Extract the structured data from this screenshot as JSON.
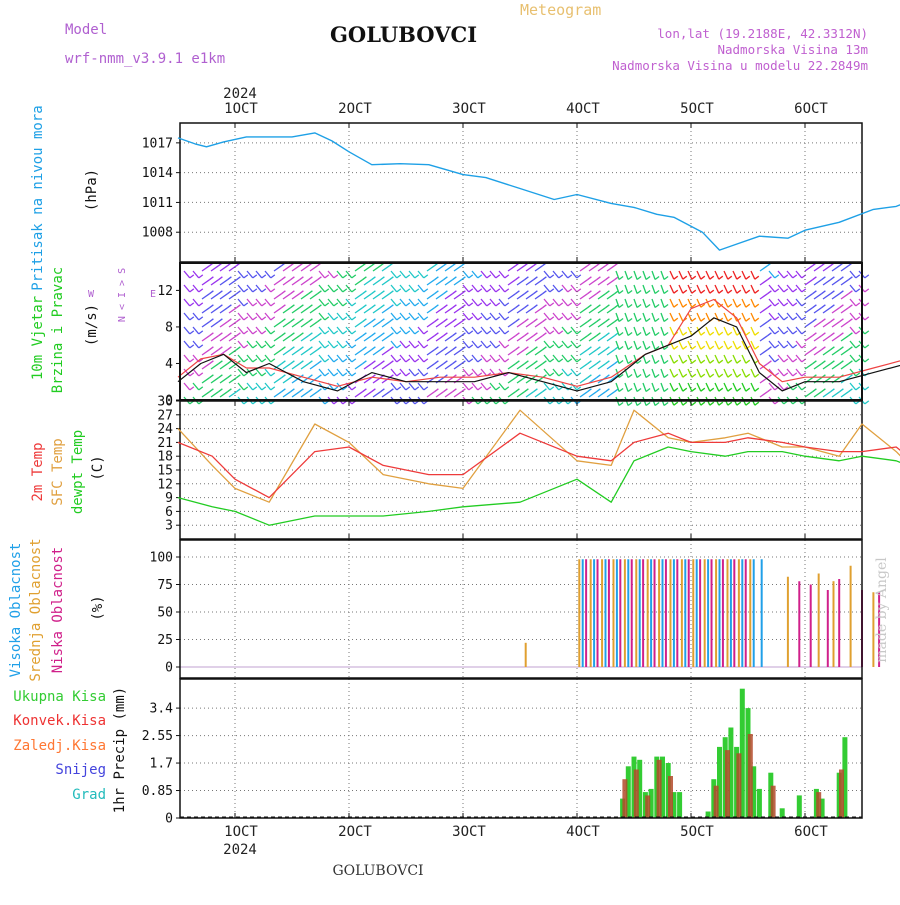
{
  "header": {
    "model_label": "Model",
    "model_name": "wrf-nmm_v3.9.1 e1km",
    "station": "GOLUBOVCI",
    "meteogram_label": "Meteogram",
    "lonlat": "lon,lat (19.2188E, 42.3312N)",
    "elevation": "Nadmorska Visina 13m",
    "model_elevation": "Nadmorska Visina u modelu 22.2849m",
    "footer_station": "GOLUBOVCI",
    "watermark": "made by Angel"
  },
  "time_axis": {
    "year": "2024",
    "ticks": [
      "1OCT",
      "2OCT",
      "3OCT",
      "4OCT",
      "5OCT",
      "6OCT"
    ]
  },
  "panels": {
    "pressure": {
      "title": "Pritisak na nivou mora",
      "unit": "(hPa)",
      "ticks": [
        "1017",
        "1014",
        "1011",
        "1008"
      ]
    },
    "wind": {
      "title_1": "10m Vjetar",
      "title_2": "Brzina i Pravac",
      "unit": "(m/s)",
      "ticks": [
        "0",
        "4",
        "8",
        "12"
      ],
      "compass": [
        "N",
        "<",
        "I",
        ">",
        "S"
      ],
      "compass_w": "W",
      "compass_e": "E"
    },
    "temperature": {
      "label_2m": "2m Temp",
      "label_sfc": "SFC Temp",
      "label_dewpt": "dewpt Temp",
      "unit": "(C)",
      "ticks": [
        "3",
        "6",
        "9",
        "12",
        "15",
        "18",
        "21",
        "24",
        "27",
        "30"
      ]
    },
    "cloud": {
      "label_high": "Visoka Oblacnost",
      "label_mid": "Srednja Oblacnost",
      "label_low": "Niska Oblacnost",
      "unit": "(%)",
      "ticks": [
        "0",
        "25",
        "50",
        "75",
        "100"
      ]
    },
    "precip": {
      "legend": [
        "Ukupna Kisa",
        "Konvek.Kisa",
        "Zaledj.Kisa",
        "Snijeg",
        "Grad"
      ],
      "axis_label": "1hr Precip (mm)",
      "ticks": [
        "0",
        "0.85",
        "1.7",
        "2.55",
        "3.4"
      ]
    }
  },
  "colors": {
    "pressure": "#1ea0e6",
    "t2m": "#ee3a3a",
    "tsfc": "#e0a040",
    "dewpt": "#22cc22",
    "high_cloud": "#20a0e8",
    "mid_cloud": "#e0a030",
    "low_cloud": "#d0208a",
    "rain_total": "#33cc33",
    "rain_conv": "#ee3333",
    "freezing": "#ff7733",
    "snow": "#4444dd",
    "hail": "#22bbbb",
    "model": "#b060d0",
    "lonlat": "#c060d0",
    "meteogram": "#e8c070"
  },
  "chart_data": [
    {
      "type": "line",
      "title": "Pritisak na nivou mora",
      "x_unit": "days since 1 OCT 2024",
      "ylim": [
        1005,
        1019
      ],
      "grid": true,
      "series": [
        {
          "name": "Pritisak na nivou mora",
          "x": [
            -0.5,
            -0.35,
            -0.25,
            -0.1,
            0.1,
            0.3,
            0.5,
            0.7,
            0.85,
            1.0,
            1.2,
            1.45,
            1.7,
            2.0,
            2.2,
            2.5,
            2.8,
            3.0,
            3.3,
            3.5,
            3.7,
            3.85,
            4.1,
            4.25,
            4.4,
            4.6,
            4.85,
            5.0,
            5.3,
            5.6,
            5.8,
            6.0,
            6.3,
            6.5
          ],
          "values": [
            1017.5,
            1016.9,
            1016.6,
            1017.1,
            1017.6,
            1017.6,
            1017.6,
            1018.0,
            1017.2,
            1016.1,
            1014.8,
            1014.9,
            1014.8,
            1013.8,
            1013.5,
            1012.4,
            1011.3,
            1011.8,
            1010.9,
            1010.5,
            1009.8,
            1009.5,
            1008.0,
            1006.2,
            1006.8,
            1007.6,
            1007.4,
            1008.2,
            1009.0,
            1010.3,
            1010.6,
            1011.5,
            1011.2,
            1010.0
          ]
        }
      ]
    },
    {
      "type": "line",
      "title": "10m Vjetar Brzina i Pravac",
      "x_unit": "days since 1 OCT 2024",
      "ylim": [
        0,
        15
      ],
      "grid": true,
      "series": [
        {
          "name": "10m Vjetar",
          "x": [
            -0.5,
            -0.3,
            -0.1,
            0.1,
            0.3,
            0.6,
            0.9,
            1.2,
            1.5,
            1.8,
            2.1,
            2.4,
            2.7,
            3.0,
            3.3,
            3.6,
            3.8,
            4.0,
            4.2,
            4.4,
            4.6,
            4.8,
            5.0,
            5.3,
            5.6,
            5.9,
            6.2,
            6.5
          ],
          "values": [
            2,
            4,
            5,
            3,
            4,
            2,
            1,
            3,
            2,
            2,
            2,
            3,
            2,
            1,
            2,
            5,
            6,
            7,
            9,
            8,
            3,
            1,
            2,
            2,
            3,
            4,
            3,
            1
          ]
        },
        {
          "name": "10m Vjetar",
          "x": [
            -0.5,
            -0.3,
            -0.1,
            0.1,
            0.3,
            0.6,
            0.9,
            1.2,
            1.5,
            1.8,
            2.1,
            2.4,
            2.7,
            3.0,
            3.3,
            3.6,
            3.8,
            4.0,
            4.2,
            4.4,
            4.6,
            4.8,
            5.0,
            5.3,
            5.6,
            5.9,
            6.2,
            6.5
          ],
          "values": [
            2.5,
            4.5,
            5,
            3.5,
            3.5,
            2.5,
            1.5,
            2.5,
            2,
            2.5,
            2.5,
            3,
            2.5,
            1.5,
            2.5,
            5,
            6,
            10,
            11,
            9,
            4,
            2,
            2.5,
            2.5,
            3.5,
            4.5,
            3.5,
            1.5
          ]
        }
      ]
    },
    {
      "type": "line",
      "title": "Temp",
      "x_unit": "days since 1 OCT 2024",
      "ylim": [
        0,
        30
      ],
      "grid": true,
      "series": [
        {
          "name": "2m Temp",
          "x": [
            -0.5,
            -0.2,
            0.0,
            0.3,
            0.7,
            1.0,
            1.3,
            1.7,
            2.0,
            2.5,
            3.0,
            3.3,
            3.5,
            3.8,
            4.0,
            4.3,
            4.5,
            4.8,
            5.0,
            5.3,
            5.5,
            5.8,
            6.0,
            6.2,
            6.5
          ],
          "values": [
            21,
            18,
            13,
            9,
            19,
            20,
            16,
            14,
            14,
            23,
            18,
            17,
            21,
            23,
            21,
            21,
            22,
            21,
            20,
            19,
            19,
            20,
            16,
            13,
            23
          ]
        },
        {
          "name": "SFC Temp",
          "x": [
            -0.5,
            -0.2,
            0.0,
            0.3,
            0.7,
            1.0,
            1.3,
            1.7,
            2.0,
            2.5,
            3.0,
            3.3,
            3.5,
            3.8,
            4.0,
            4.3,
            4.5,
            4.8,
            5.0,
            5.3,
            5.5,
            5.8,
            6.0,
            6.2,
            6.5
          ],
          "values": [
            24,
            16,
            11,
            8,
            25,
            21,
            14,
            12,
            11,
            28,
            17,
            16,
            28,
            22,
            21,
            22,
            23,
            20,
            20,
            18,
            25,
            19,
            14,
            12,
            27
          ]
        },
        {
          "name": "dewpt Temp",
          "x": [
            -0.5,
            -0.2,
            0.0,
            0.3,
            0.7,
            1.0,
            1.3,
            1.7,
            2.0,
            2.5,
            3.0,
            3.3,
            3.5,
            3.8,
            4.0,
            4.3,
            4.5,
            4.8,
            5.0,
            5.3,
            5.5,
            5.8,
            6.0,
            6.2,
            6.5
          ],
          "values": [
            9,
            7,
            6,
            3,
            5,
            5,
            5,
            6,
            7,
            8,
            13,
            8,
            17,
            20,
            19,
            18,
            19,
            19,
            18,
            17,
            18,
            17,
            15,
            12,
            10
          ]
        }
      ]
    },
    {
      "type": "bar",
      "title": "Oblacnost",
      "x_unit": "days since 1 OCT 2024",
      "ylim": [
        0,
        100
      ],
      "series": [
        {
          "name": "Visoka Oblacnost",
          "x": [
            3.05,
            3.15,
            3.25,
            3.35,
            3.45,
            3.55,
            3.65,
            3.75,
            3.85,
            3.95,
            4.05,
            4.15,
            4.25,
            4.35,
            4.45,
            4.55,
            4.62
          ],
          "values": [
            98,
            98,
            98,
            98,
            98,
            98,
            98,
            98,
            98,
            98,
            98,
            98,
            98,
            98,
            98,
            98,
            98
          ]
        },
        {
          "name": "Srednja Oblacnost",
          "x": [
            2.55,
            3.02,
            3.12,
            3.22,
            3.32,
            3.42,
            3.52,
            3.62,
            3.72,
            3.82,
            3.92,
            4.02,
            4.12,
            4.22,
            4.32,
            4.42,
            4.52,
            4.85,
            5.12,
            5.25,
            5.4,
            5.6,
            6.3
          ],
          "values": [
            22,
            98,
            98,
            98,
            98,
            98,
            98,
            98,
            98,
            98,
            98,
            98,
            98,
            98,
            98,
            98,
            98,
            82,
            85,
            78,
            92,
            68,
            5
          ]
        },
        {
          "name": "Niska Oblacnost",
          "x": [
            3.08,
            3.18,
            3.28,
            3.38,
            3.48,
            3.58,
            3.68,
            3.78,
            3.88,
            3.98,
            4.08,
            4.18,
            4.28,
            4.38,
            4.48,
            4.95,
            5.05,
            5.2,
            5.3,
            5.5,
            5.65
          ],
          "values": [
            98,
            98,
            98,
            98,
            98,
            98,
            98,
            98,
            98,
            98,
            98,
            98,
            98,
            98,
            98,
            78,
            75,
            70,
            80,
            70,
            68
          ]
        }
      ]
    },
    {
      "type": "bar",
      "title": "1hr Precip",
      "x_unit": "days since 1 OCT 2024",
      "ylim": [
        0,
        4.3
      ],
      "series": [
        {
          "name": "Ukupna Kisa",
          "x": [
            3.4,
            3.45,
            3.5,
            3.55,
            3.6,
            3.65,
            3.7,
            3.75,
            3.8,
            3.85,
            3.9,
            4.15,
            4.2,
            4.25,
            4.3,
            4.35,
            4.4,
            4.45,
            4.5,
            4.55,
            4.6,
            4.7,
            4.8,
            4.95,
            5.1,
            5.15,
            5.3,
            5.35
          ],
          "values": [
            0.6,
            1.6,
            1.9,
            1.8,
            0.8,
            0.9,
            1.9,
            1.9,
            1.7,
            0.8,
            0.8,
            0.2,
            1.2,
            2.2,
            2.5,
            2.8,
            2.2,
            4.0,
            3.4,
            1.6,
            0.9,
            1.4,
            0.3,
            0.7,
            0.9,
            0.6,
            1.4,
            2.5
          ]
        },
        {
          "name": "Konvek.Kisa",
          "x": [
            3.42,
            3.52,
            3.62,
            3.72,
            3.82,
            4.22,
            4.32,
            4.42,
            4.52,
            4.72,
            5.12,
            5.32
          ],
          "values": [
            1.2,
            1.5,
            0.7,
            1.8,
            1.3,
            1.0,
            2.1,
            2.0,
            2.6,
            1.0,
            0.8,
            1.5
          ]
        }
      ]
    }
  ]
}
